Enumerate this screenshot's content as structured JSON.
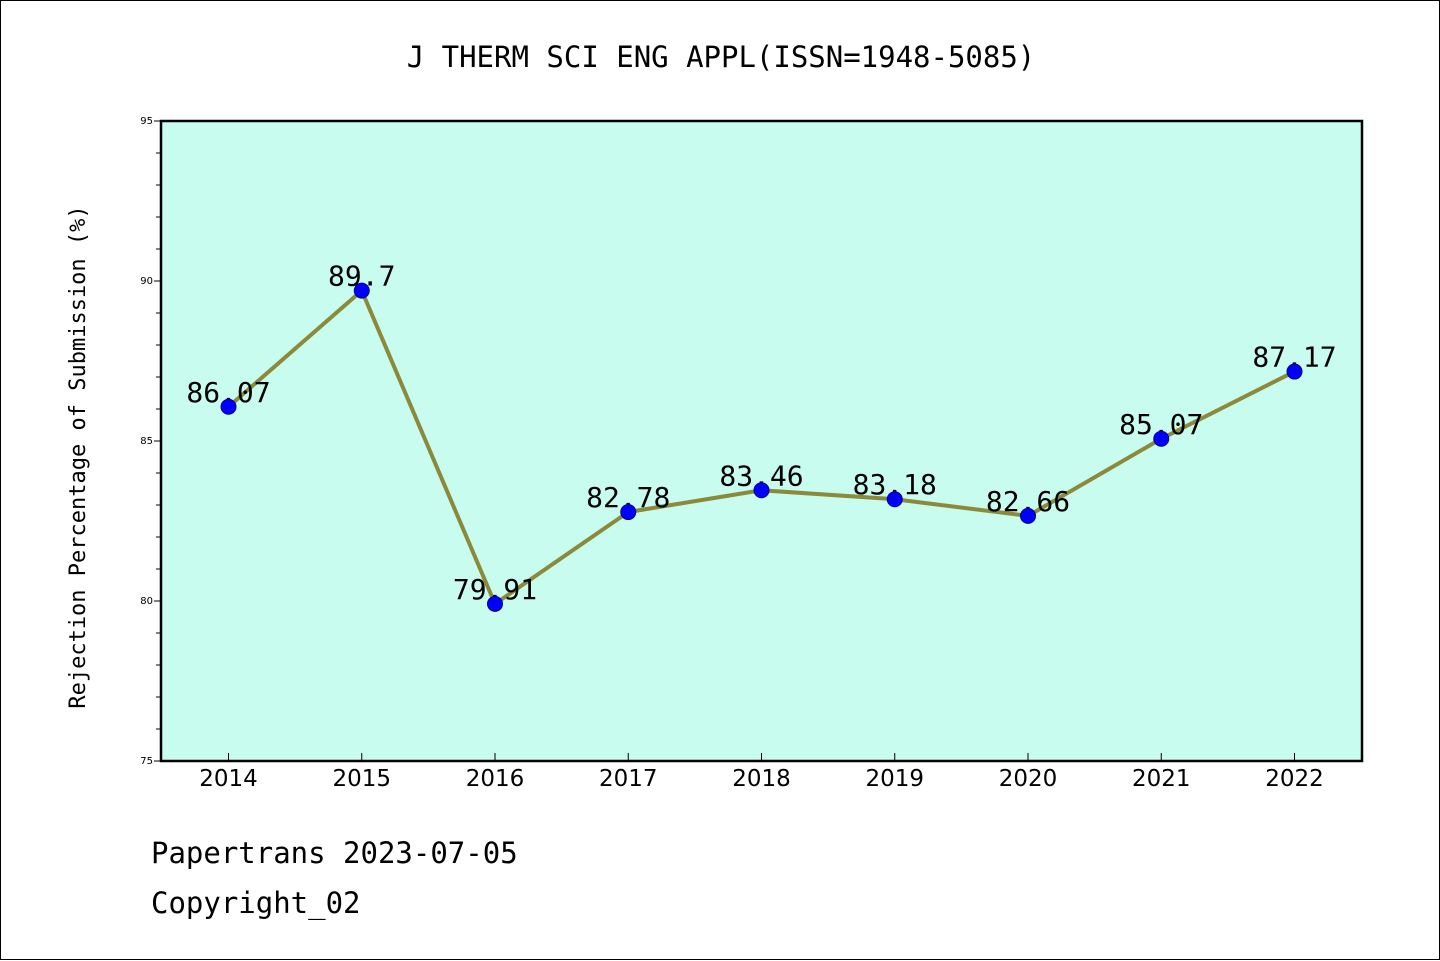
{
  "chart_data": {
    "type": "line",
    "title": "J THERM SCI ENG APPL(ISSN=1948-5085)",
    "xlabel": "",
    "ylabel": "Rejection Percentage of Submission (%)",
    "categories": [
      "2014",
      "2015",
      "2016",
      "2017",
      "2018",
      "2019",
      "2020",
      "2021",
      "2022"
    ],
    "series": [
      {
        "values": [
          86.07,
          89.7,
          79.91,
          82.78,
          83.46,
          83.18,
          82.66,
          85.07,
          87.17
        ],
        "labels": [
          "86.07",
          "89.7",
          "79.91",
          "82.78",
          "83.46",
          "83.18",
          "82.66",
          "85.07",
          "87.17"
        ]
      }
    ],
    "ylim": [
      75,
      95
    ],
    "yticks": [
      "75",
      "80",
      "85",
      "90",
      "95"
    ],
    "grid": false,
    "legend": "none",
    "colors": {
      "plot_background": "#c8fcee",
      "line": "#8b8a3c",
      "marker": "#0000ff",
      "axes": "#000000"
    }
  },
  "footer": {
    "line1": "Papertrans 2023-07-05",
    "line2": "Copyright_02"
  }
}
